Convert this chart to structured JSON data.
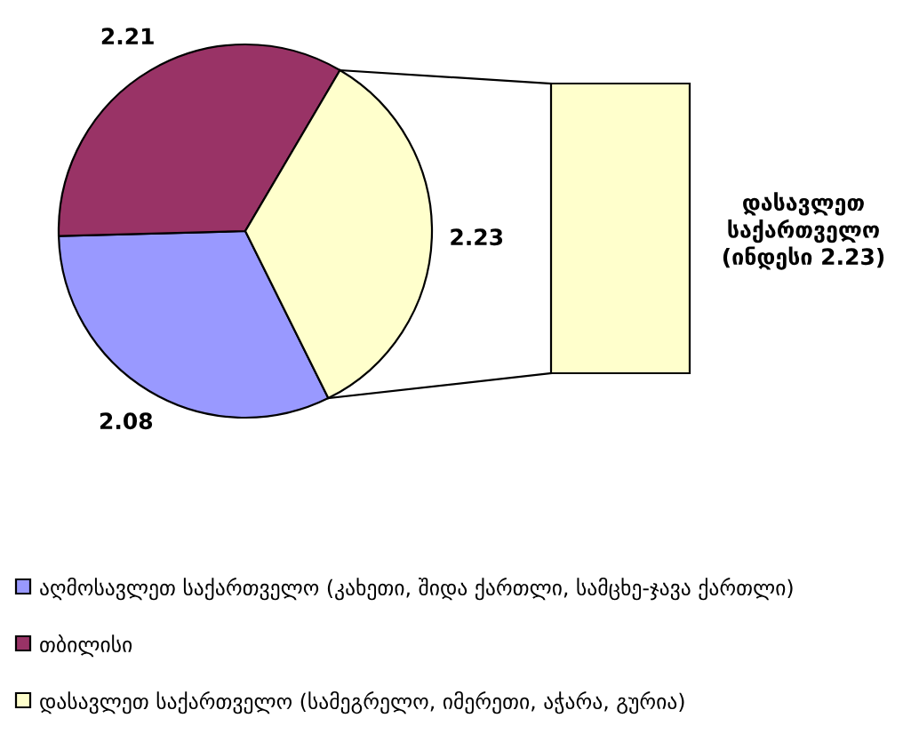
{
  "chart_data": {
    "type": "pie",
    "categories": [
      "აღმოსავლეთ საქართველო (კახეთი, შიდა ქართლი, სამცხე-ჯავა ქართლი)",
      "თბილისი",
      "დასავლეთ საქართველო (სამეგრელო, იმერეთი, აჭარა, გურია)"
    ],
    "values": [
      2.08,
      2.21,
      2.23
    ],
    "colors": [
      "#9999ff",
      "#993366",
      "#ffffcc"
    ],
    "data_labels": true,
    "legend": "bottom",
    "annotations": [
      "დასავლეთ საქართველო (ინდესი 2.23)"
    ]
  }
}
